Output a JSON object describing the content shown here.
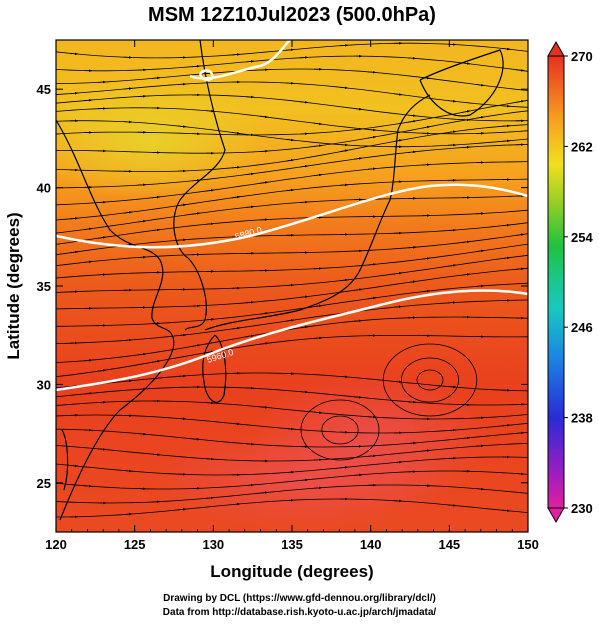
{
  "title": "MSM 12Z10Jul2023 (500.0hPa)",
  "x_axis": {
    "label": "Longitude (degrees)",
    "ticks": [
      "120",
      "125",
      "130",
      "135",
      "140",
      "145",
      "150"
    ],
    "range": [
      120,
      150
    ]
  },
  "y_axis": {
    "label": "Latitude  (degrees)",
    "ticks": [
      "25",
      "30",
      "35",
      "40",
      "45"
    ],
    "range": [
      22.5,
      47.5
    ]
  },
  "colorbar": {
    "ticks": [
      "270",
      "262",
      "254",
      "246",
      "238",
      "230"
    ],
    "range": [
      230,
      270
    ],
    "colors": [
      "#e0209f",
      "#7a1ec8",
      "#2030d8",
      "#1aa0e0",
      "#18c8b0",
      "#20c040",
      "#a0d020",
      "#f0e020",
      "#f8a020",
      "#f06020",
      "#e83020"
    ]
  },
  "contour_labels": [
    "5880.0",
    "5960.0"
  ],
  "credits": {
    "line1": "Drawing by DCL (https://www.gfd-dennou.org/library/dcl/)",
    "line2": "Data from http://database.rish.kyoto-u.ac.jp/arch/jmadata/"
  }
}
